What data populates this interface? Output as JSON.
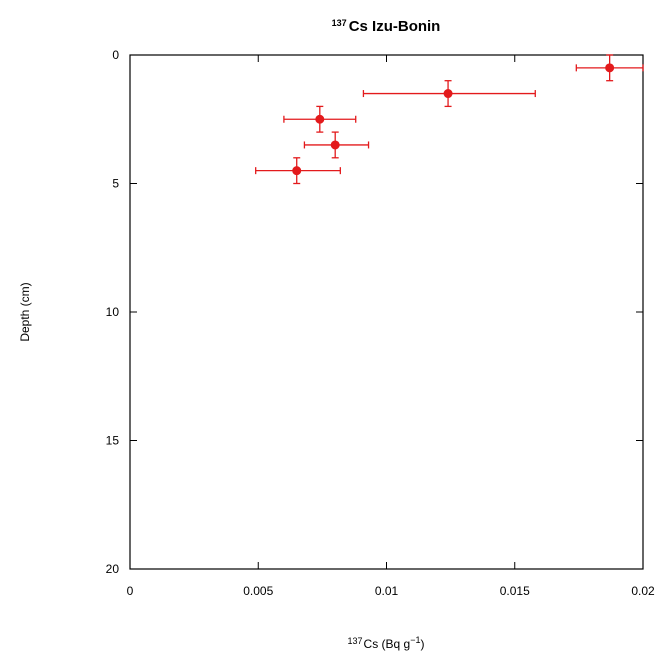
{
  "chart_data": {
    "type": "scatter",
    "title": {
      "sup": "137",
      "main": "Cs Izu-Bonin"
    },
    "xlabel": {
      "sup": "137",
      "main": "Cs (Bq g",
      "exp": "−1",
      "end": ")"
    },
    "ylabel": "Depth (cm)",
    "xlim": [
      0,
      0.02
    ],
    "ylim": [
      0,
      20
    ],
    "y_inverted": true,
    "grid": false,
    "x_ticks": [
      {
        "value": 0,
        "label": "0"
      },
      {
        "value": 0.005,
        "label": "0.005"
      },
      {
        "value": 0.01,
        "label": "0.01"
      },
      {
        "value": 0.015,
        "label": "0.015"
      },
      {
        "value": 0.02,
        "label": "0.02"
      }
    ],
    "y_ticks": [
      {
        "value": 0,
        "label": "0"
      },
      {
        "value": 5,
        "label": "5"
      },
      {
        "value": 10,
        "label": "10"
      },
      {
        "value": 15,
        "label": "15"
      },
      {
        "value": 20,
        "label": "20"
      }
    ],
    "series": [
      {
        "color": "#e31a1c",
        "points": [
          {
            "x": 0.0187,
            "y": 0.5,
            "xerr": [
              0.0174,
              0.0201
            ],
            "yerr": [
              0,
              1
            ]
          },
          {
            "x": 0.0124,
            "y": 1.5,
            "xerr": [
              0.0091,
              0.0158
            ],
            "yerr": [
              1,
              2
            ]
          },
          {
            "x": 0.0074,
            "y": 2.5,
            "xerr": [
              0.006,
              0.0088
            ],
            "yerr": [
              2,
              3
            ]
          },
          {
            "x": 0.008,
            "y": 3.5,
            "xerr": [
              0.0068,
              0.0093
            ],
            "yerr": [
              3,
              4
            ]
          },
          {
            "x": 0.0065,
            "y": 4.5,
            "xerr": [
              0.0049,
              0.0082
            ],
            "yerr": [
              4,
              5
            ]
          }
        ]
      }
    ]
  }
}
